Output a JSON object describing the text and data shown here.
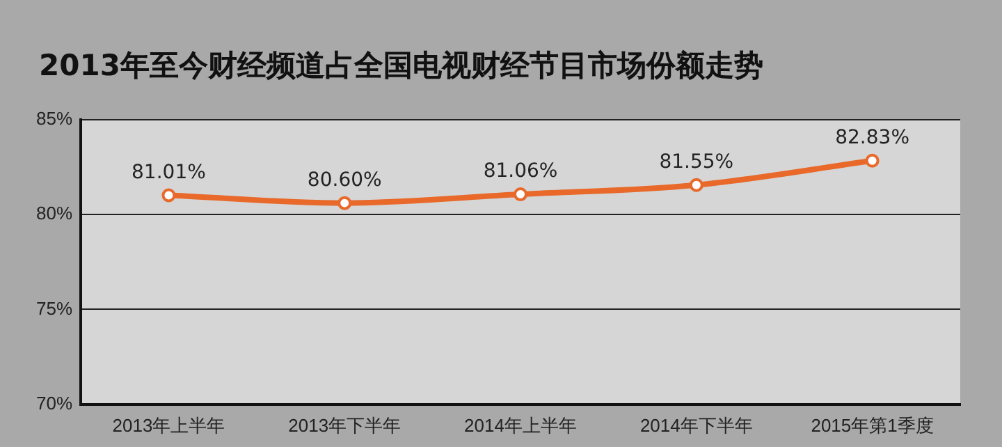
{
  "chart_data": {
    "type": "line",
    "title": "2013年至今财经频道占全国电视财经节目市场份额走势",
    "categories": [
      "2013年上半年",
      "2013年下半年",
      "2014年上半年",
      "2014年下半年",
      "2015年第1季度"
    ],
    "values": [
      81.01,
      80.6,
      81.06,
      81.55,
      82.83
    ],
    "value_labels": [
      "81.01%",
      "80.60%",
      "81.06%",
      "81.55%",
      "82.83%"
    ],
    "color": "#e8692a",
    "marker": "circle",
    "ylim": [
      70,
      85
    ],
    "yticks": [
      {
        "value": 70,
        "label": "70%"
      },
      {
        "value": 75,
        "label": "75%"
      },
      {
        "value": 80,
        "label": "80%"
      },
      {
        "value": 85,
        "label": "85%"
      }
    ],
    "grid": "y",
    "legend": false
  }
}
